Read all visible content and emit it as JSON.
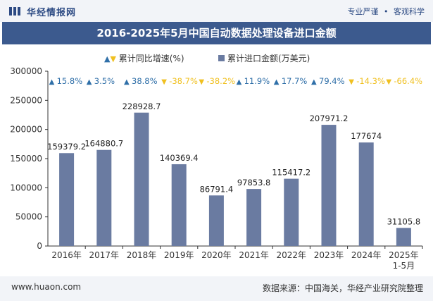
{
  "header": {
    "brand": "华经情报网",
    "right_text_1": "专业严谨",
    "right_text_2": "客观科学"
  },
  "title": "2016-2025年5月中国自动数据处理设备进口金额",
  "legend": {
    "growth_label": "累计同比增速(%)",
    "value_label": "累计进口金额(万美元)"
  },
  "footer": {
    "left": "www.huaon.com",
    "right": "数据来源：中国海关，华经产业研究院整理"
  },
  "colors": {
    "bar": "#6a7ba1",
    "up": "#2f6fa8",
    "down": "#f0c020",
    "title_bg": "#3c5a8e"
  },
  "chart_data": {
    "type": "bar",
    "categories": [
      "2016年",
      "2017年",
      "2018年",
      "2019年",
      "2020年",
      "2021年",
      "2022年",
      "2023年",
      "2024年",
      "2025年1-5月"
    ],
    "series": [
      {
        "name": "累计进口金额(万美元)",
        "values": [
          159379.2,
          164880.7,
          228928.7,
          140369.4,
          86791.4,
          97853.8,
          115417.2,
          207971.2,
          177674,
          31105.8
        ],
        "labels": [
          "159379.2",
          "164880.7",
          "228928.7",
          "140369.4",
          "86791.4",
          "97853.8",
          "115417.2",
          "207971.2",
          "177674",
          "31105.8"
        ]
      },
      {
        "name": "累计同比增速(%)",
        "values": [
          15.8,
          3.5,
          38.8,
          -38.7,
          -38.2,
          11.9,
          17.7,
          79.4,
          -14.3,
          -66.4
        ],
        "labels": [
          "15.8%",
          "3.5%",
          "38.8%",
          "-38.7%",
          "-38.2%",
          "11.9%",
          "17.7%",
          "79.4%",
          "-14.3%",
          "-66.4%"
        ]
      }
    ],
    "ylim": [
      0,
      300000
    ],
    "yticks": [
      0,
      50000,
      100000,
      150000,
      200000,
      250000,
      300000
    ],
    "ytick_labels": [
      "0",
      "50000",
      "100000",
      "150000",
      "200000",
      "250000",
      "300000"
    ],
    "legend_position": "top-center",
    "grid": false
  }
}
